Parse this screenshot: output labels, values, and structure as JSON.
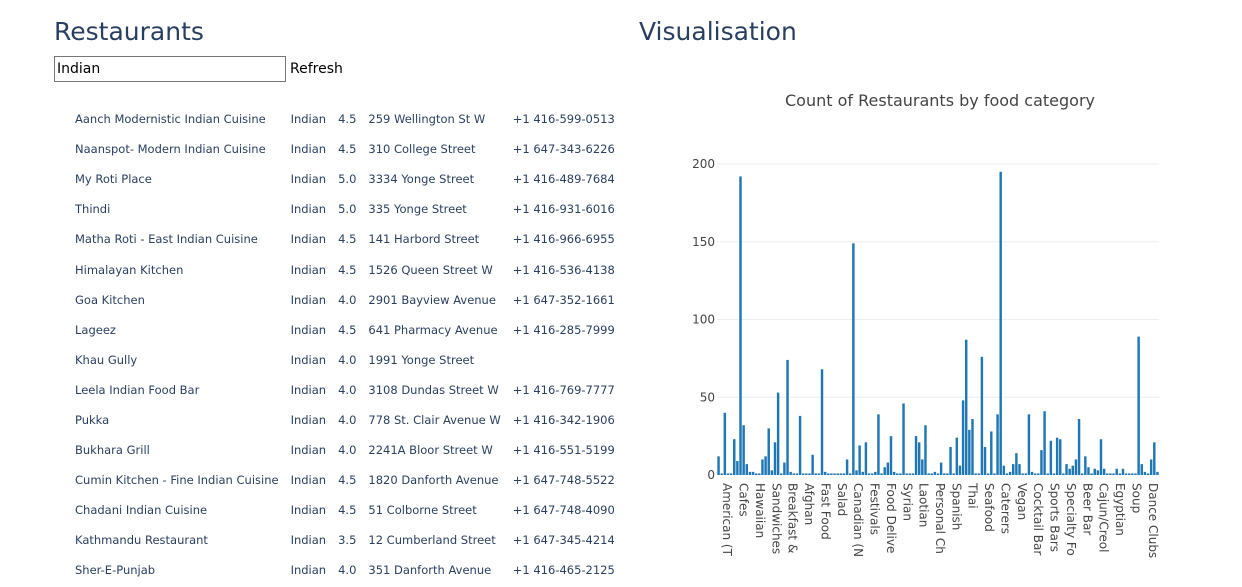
{
  "left_panel": {
    "title": "Restaurants",
    "search": {
      "value": "Indian"
    },
    "refresh_label": "Refresh"
  },
  "restaurants": [
    {
      "name": "Aanch Modernistic Indian Cuisine",
      "category": "Indian",
      "rating": "4.5",
      "address": "259 Wellington St W",
      "phone": "+1 416-599-0513"
    },
    {
      "name": "Naanspot- Modern Indian Cuisine",
      "category": "Indian",
      "rating": "4.5",
      "address": "310 College Street",
      "phone": "+1 647-343-6226"
    },
    {
      "name": "My Roti Place",
      "category": "Indian",
      "rating": "5.0",
      "address": "3334 Yonge Street",
      "phone": "+1 416-489-7684"
    },
    {
      "name": "Thindi",
      "category": "Indian",
      "rating": "5.0",
      "address": "335 Yonge Street",
      "phone": "+1 416-931-6016"
    },
    {
      "name": "Matha Roti - East Indian Cuisine",
      "category": "Indian",
      "rating": "4.5",
      "address": "141 Harbord Street",
      "phone": "+1 416-966-6955"
    },
    {
      "name": "Himalayan Kitchen",
      "category": "Indian",
      "rating": "4.5",
      "address": "1526 Queen Street W",
      "phone": "+1 416-536-4138"
    },
    {
      "name": "Goa Kitchen",
      "category": "Indian",
      "rating": "4.0",
      "address": "2901 Bayview Avenue",
      "phone": "+1 647-352-1661"
    },
    {
      "name": "Lageez",
      "category": "Indian",
      "rating": "4.5",
      "address": "641 Pharmacy Avenue",
      "phone": "+1 416-285-7999"
    },
    {
      "name": "Khau Gully",
      "category": "Indian",
      "rating": "4.0",
      "address": "1991 Yonge Street",
      "phone": ""
    },
    {
      "name": "Leela Indian Food Bar",
      "category": "Indian",
      "rating": "4.0",
      "address": "3108 Dundas Street W",
      "phone": "+1 416-769-7777"
    },
    {
      "name": "Pukka",
      "category": "Indian",
      "rating": "4.0",
      "address": "778 St. Clair Avenue W",
      "phone": "+1 416-342-1906"
    },
    {
      "name": "Bukhara Grill",
      "category": "Indian",
      "rating": "4.0",
      "address": "2241A Bloor Street W",
      "phone": "+1 416-551-5199"
    },
    {
      "name": "Cumin Kitchen - Fine Indian Cuisine",
      "category": "Indian",
      "rating": "4.5",
      "address": "1820 Danforth Avenue",
      "phone": "+1 647-748-5522"
    },
    {
      "name": "Chadani Indian Cuisine",
      "category": "Indian",
      "rating": "4.5",
      "address": "51 Colborne Street",
      "phone": "+1 647-748-4090"
    },
    {
      "name": "Kathmandu Restaurant",
      "category": "Indian",
      "rating": "3.5",
      "address": "12 Cumberland Street",
      "phone": "+1 647-345-4214"
    },
    {
      "name": "Sher-E-Punjab",
      "category": "Indian",
      "rating": "4.0",
      "address": "351 Danforth Avenue",
      "phone": "+1 416-465-2125"
    }
  ],
  "right_panel": {
    "title": "Visualisation"
  },
  "chart_data": {
    "type": "bar",
    "title": "Count of Restaurants by food category",
    "xlabel": "",
    "ylabel": "",
    "ylim": [
      0,
      205
    ],
    "yticks": [
      0,
      50,
      100,
      150,
      200
    ],
    "bar_color": "#1f77b4",
    "grid": true,
    "tick_labels": [
      "American (T",
      "Cafes",
      "Hawaiian",
      "Sandwiches",
      "Breakfast &",
      "Afghan",
      "Fast Food",
      "Salad",
      "Canadian (N",
      "Festivals",
      "Food Delive",
      "Syrian",
      "Laotian",
      "Personal Ch",
      "Spanish",
      "Thai",
      "Seafood",
      "Caterers",
      "Vegan",
      "Cocktail Bar",
      "Sports Bars",
      "Specialty Fo",
      "Beer Bar",
      "Cajun/Creol",
      "Egyptian",
      "Soup",
      "Dance Clubs"
    ],
    "values": [
      12,
      1,
      40,
      1,
      1,
      23,
      9,
      192,
      32,
      7,
      2,
      2,
      1,
      1,
      10,
      12,
      30,
      3,
      21,
      53,
      1,
      8,
      74,
      2,
      1,
      1,
      38,
      1,
      1,
      1,
      13,
      1,
      1,
      68,
      2,
      1,
      1,
      1,
      1,
      1,
      1,
      10,
      1,
      149,
      3,
      19,
      2,
      21,
      1,
      1,
      2,
      39,
      1,
      5,
      8,
      25,
      2,
      1,
      1,
      46,
      1,
      1,
      1,
      25,
      21,
      10,
      32,
      1,
      1,
      2,
      1,
      8,
      1,
      1,
      18,
      1,
      24,
      6,
      48,
      87,
      29,
      36,
      1,
      1,
      76,
      18,
      1,
      28,
      1,
      39,
      195,
      6,
      1,
      2,
      7,
      14,
      7,
      1,
      1,
      39,
      2,
      1,
      1,
      16,
      41,
      1,
      22,
      1,
      24,
      23,
      1,
      7,
      4,
      6,
      10,
      36,
      1,
      12,
      5,
      1,
      4,
      3,
      23,
      4,
      1,
      1,
      1,
      4,
      1,
      4,
      1,
      1,
      1,
      1,
      89,
      7,
      2,
      1,
      10,
      21,
      2
    ]
  }
}
